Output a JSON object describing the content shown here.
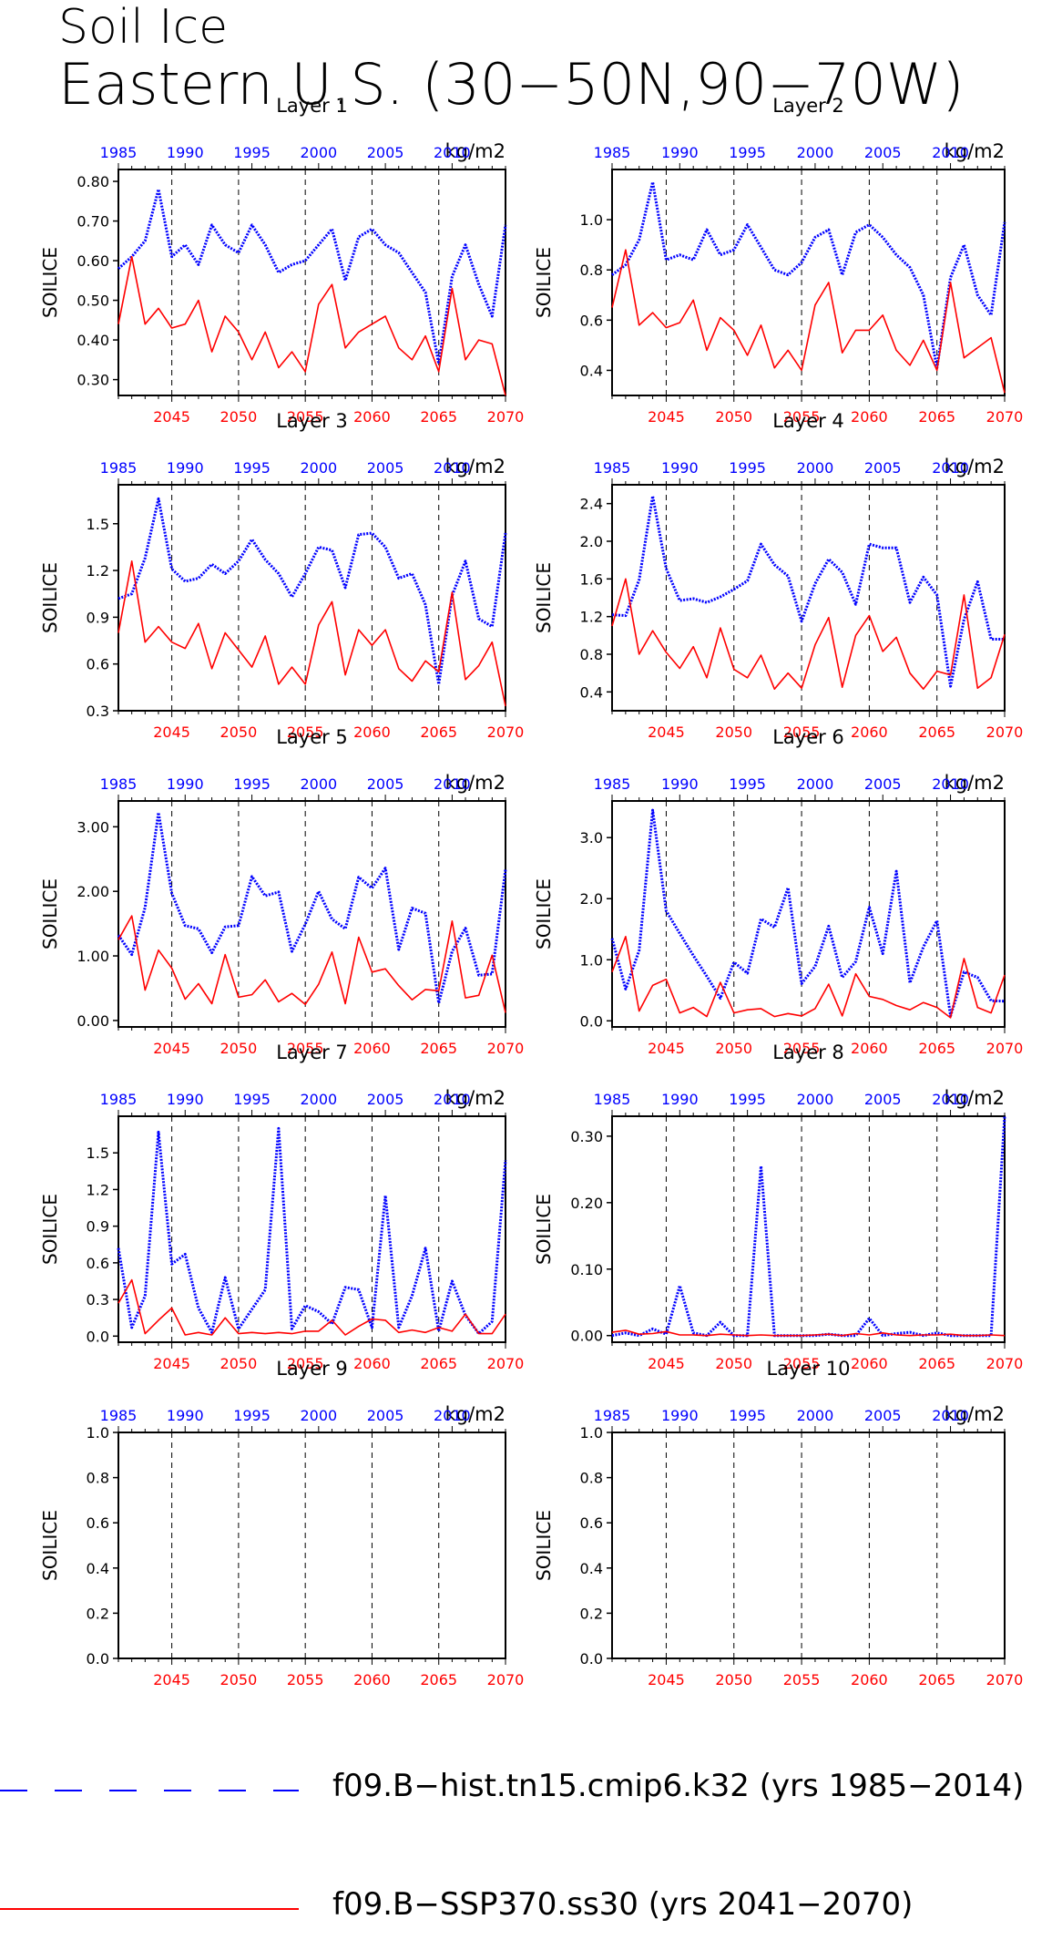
{
  "title": {
    "line1": "Soil Ice",
    "line2": "Eastern U.S. (30−50N,90−70W)"
  },
  "colors": {
    "hist": "#0000ff",
    "ssp": "#ff0000",
    "axis": "#000000"
  },
  "legend": [
    {
      "label": "f09.B−hist.tn15.cmip6.k32 (yrs 1985−2014)",
      "color": "#0000ff",
      "style": "dashed"
    },
    {
      "label": "f09.B−SSP370.ss30 (yrs 2041−2070)",
      "color": "#ff0000",
      "style": "solid"
    }
  ],
  "chart_data": [
    {
      "type": "line",
      "title": "Layer 1",
      "ylabel": "SOILICE",
      "units": "kg/m2",
      "yticks": [
        "0.30",
        "0.40",
        "0.50",
        "0.60",
        "0.70",
        "0.80"
      ],
      "ylim": [
        0.26,
        0.83
      ],
      "top_axis": {
        "ticks": [
          1985,
          1990,
          1995,
          2000,
          2005,
          2010
        ],
        "range": [
          1985,
          2014
        ]
      },
      "bottom_axis": {
        "ticks": [
          2045,
          2050,
          2055,
          2060,
          2065,
          2070
        ],
        "range": [
          2041,
          2070
        ]
      },
      "vlines_bottom_years": [
        2045,
        2050,
        2055,
        2060,
        2065
      ],
      "series": [
        {
          "key": "hist",
          "x_start": 1985,
          "values": [
            0.58,
            0.61,
            0.65,
            0.78,
            0.61,
            0.64,
            0.59,
            0.69,
            0.64,
            0.62,
            0.69,
            0.64,
            0.57,
            0.59,
            0.6,
            0.64,
            0.68,
            0.55,
            0.66,
            0.68,
            0.64,
            0.62,
            0.57,
            0.52,
            0.34,
            0.56,
            0.64,
            0.54,
            0.46,
            0.69
          ]
        },
        {
          "key": "ssp",
          "x_start": 2041,
          "values": [
            0.44,
            0.61,
            0.44,
            0.48,
            0.43,
            0.44,
            0.5,
            0.37,
            0.46,
            0.42,
            0.35,
            0.42,
            0.33,
            0.37,
            0.32,
            0.49,
            0.54,
            0.38,
            0.42,
            0.44,
            0.46,
            0.38,
            0.35,
            0.41,
            0.32,
            0.53,
            0.35,
            0.4,
            0.39,
            0.26
          ]
        }
      ]
    },
    {
      "type": "line",
      "title": "Layer 2",
      "ylabel": "SOILICE",
      "units": "kg/m2",
      "yticks": [
        "0.4",
        "0.6",
        "0.8",
        "1.0"
      ],
      "ylim": [
        0.3,
        1.2
      ],
      "top_axis": {
        "ticks": [
          1985,
          1990,
          1995,
          2000,
          2005,
          2010
        ],
        "range": [
          1985,
          2014
        ]
      },
      "bottom_axis": {
        "ticks": [
          2045,
          2050,
          2055,
          2060,
          2065,
          2070
        ],
        "range": [
          2041,
          2070
        ]
      },
      "vlines_bottom_years": [
        2045,
        2050,
        2055,
        2060,
        2065
      ],
      "series": [
        {
          "key": "hist",
          "x_start": 1985,
          "values": [
            0.78,
            0.82,
            0.92,
            1.15,
            0.84,
            0.86,
            0.84,
            0.96,
            0.86,
            0.88,
            0.98,
            0.89,
            0.8,
            0.78,
            0.83,
            0.93,
            0.96,
            0.78,
            0.95,
            0.98,
            0.93,
            0.86,
            0.81,
            0.7,
            0.41,
            0.77,
            0.9,
            0.7,
            0.62,
            0.99
          ]
        },
        {
          "key": "ssp",
          "x_start": 2041,
          "values": [
            0.65,
            0.88,
            0.58,
            0.63,
            0.57,
            0.59,
            0.68,
            0.48,
            0.61,
            0.56,
            0.46,
            0.58,
            0.41,
            0.48,
            0.4,
            0.66,
            0.75,
            0.47,
            0.56,
            0.56,
            0.62,
            0.48,
            0.42,
            0.52,
            0.4,
            0.75,
            0.45,
            0.49,
            0.53,
            0.31
          ]
        }
      ]
    },
    {
      "type": "line",
      "title": "Layer 3",
      "ylabel": "SOILICE",
      "units": "kg/m2",
      "yticks": [
        "0.3",
        "0.6",
        "0.9",
        "1.2",
        "1.5"
      ],
      "ylim": [
        0.3,
        1.75
      ],
      "top_axis": {
        "ticks": [
          1985,
          1990,
          1995,
          2000,
          2005,
          2010
        ],
        "range": [
          1985,
          2014
        ]
      },
      "bottom_axis": {
        "ticks": [
          2045,
          2050,
          2055,
          2060,
          2065,
          2070
        ],
        "range": [
          2041,
          2070
        ]
      },
      "vlines_bottom_years": [
        2045,
        2050,
        2055,
        2060,
        2065
      ],
      "series": [
        {
          "key": "hist",
          "x_start": 1985,
          "values": [
            1.02,
            1.05,
            1.28,
            1.66,
            1.21,
            1.13,
            1.15,
            1.24,
            1.18,
            1.26,
            1.4,
            1.27,
            1.18,
            1.03,
            1.18,
            1.35,
            1.33,
            1.09,
            1.43,
            1.44,
            1.35,
            1.15,
            1.18,
            0.98,
            0.47,
            1.04,
            1.26,
            0.89,
            0.84,
            1.44
          ]
        },
        {
          "key": "ssp",
          "x_start": 2041,
          "values": [
            0.8,
            1.26,
            0.74,
            0.84,
            0.74,
            0.7,
            0.86,
            0.57,
            0.8,
            0.69,
            0.58,
            0.78,
            0.47,
            0.58,
            0.47,
            0.85,
            1.0,
            0.53,
            0.82,
            0.72,
            0.82,
            0.57,
            0.49,
            0.62,
            0.55,
            1.06,
            0.5,
            0.59,
            0.74,
            0.33
          ]
        }
      ]
    },
    {
      "type": "line",
      "title": "Layer 4",
      "ylabel": "SOILICE",
      "units": "kg/m2",
      "yticks": [
        "0.4",
        "0.8",
        "1.2",
        "1.6",
        "2.0",
        "2.4"
      ],
      "ylim": [
        0.2,
        2.6
      ],
      "top_axis": {
        "ticks": [
          1985,
          1990,
          1995,
          2000,
          2005,
          2010
        ],
        "range": [
          1985,
          2014
        ]
      },
      "bottom_axis": {
        "ticks": [
          2045,
          2050,
          2055,
          2060,
          2065,
          2070
        ],
        "range": [
          2041,
          2070
        ]
      },
      "vlines_bottom_years": [
        2045,
        2050,
        2055,
        2060,
        2065
      ],
      "series": [
        {
          "key": "hist",
          "x_start": 1985,
          "values": [
            1.22,
            1.21,
            1.59,
            2.48,
            1.71,
            1.37,
            1.39,
            1.35,
            1.41,
            1.49,
            1.58,
            1.97,
            1.75,
            1.63,
            1.15,
            1.55,
            1.81,
            1.67,
            1.33,
            1.97,
            1.93,
            1.93,
            1.35,
            1.62,
            1.43,
            0.46,
            1.17,
            1.57,
            0.96,
            0.96
          ]
        },
        {
          "key": "ssp",
          "x_start": 2041,
          "values": [
            1.1,
            1.6,
            0.8,
            1.05,
            0.82,
            0.65,
            0.88,
            0.55,
            1.08,
            0.64,
            0.55,
            0.79,
            0.43,
            0.6,
            0.44,
            0.9,
            1.19,
            0.45,
            1.0,
            1.21,
            0.83,
            0.98,
            0.6,
            0.43,
            0.62,
            0.58,
            1.43,
            0.44,
            0.55,
            1.01
          ]
        }
      ]
    },
    {
      "type": "line",
      "title": "Layer 5",
      "ylabel": "SOILICE",
      "units": "kg/m2",
      "yticks": [
        "0.00",
        "1.00",
        "2.00",
        "3.00"
      ],
      "ylim": [
        -0.1,
        3.4
      ],
      "top_axis": {
        "ticks": [
          1985,
          1990,
          1995,
          2000,
          2005,
          2010
        ],
        "range": [
          1985,
          2014
        ]
      },
      "bottom_axis": {
        "ticks": [
          2045,
          2050,
          2055,
          2060,
          2065,
          2070
        ],
        "range": [
          2041,
          2070
        ]
      },
      "vlines_bottom_years": [
        2045,
        2050,
        2055,
        2060,
        2065
      ],
      "series": [
        {
          "key": "hist",
          "x_start": 1985,
          "values": [
            1.32,
            1.02,
            1.75,
            3.22,
            1.97,
            1.47,
            1.42,
            1.05,
            1.45,
            1.47,
            2.23,
            1.93,
            1.99,
            1.07,
            1.49,
            2.0,
            1.57,
            1.42,
            2.22,
            2.05,
            2.36,
            1.1,
            1.74,
            1.66,
            0.27,
            1.07,
            1.43,
            0.7,
            0.72,
            2.34
          ]
        },
        {
          "key": "ssp",
          "x_start": 2041,
          "values": [
            1.25,
            1.62,
            0.47,
            1.09,
            0.81,
            0.33,
            0.57,
            0.26,
            1.02,
            0.36,
            0.4,
            0.63,
            0.29,
            0.42,
            0.25,
            0.56,
            1.06,
            0.26,
            1.29,
            0.75,
            0.8,
            0.54,
            0.32,
            0.48,
            0.46,
            1.54,
            0.35,
            0.39,
            1.01,
            0.12
          ]
        }
      ]
    },
    {
      "type": "line",
      "title": "Layer 6",
      "ylabel": "SOILICE",
      "units": "kg/m2",
      "yticks": [
        "0.0",
        "1.0",
        "2.0",
        "3.0"
      ],
      "ylim": [
        -0.1,
        3.6
      ],
      "top_axis": {
        "ticks": [
          1985,
          1990,
          1995,
          2000,
          2005,
          2010
        ],
        "range": [
          1985,
          2014
        ]
      },
      "bottom_axis": {
        "ticks": [
          2045,
          2050,
          2055,
          2060,
          2065,
          2070
        ],
        "range": [
          2041,
          2070
        ]
      },
      "vlines_bottom_years": [
        2045,
        2050,
        2055,
        2060,
        2065
      ],
      "series": [
        {
          "key": "hist",
          "x_start": 1985,
          "values": [
            1.35,
            0.52,
            1.15,
            3.45,
            1.8,
            1.43,
            1.07,
            0.73,
            0.37,
            0.96,
            0.78,
            1.67,
            1.53,
            2.18,
            0.61,
            0.89,
            1.55,
            0.71,
            0.97,
            1.86,
            1.1,
            2.45,
            0.62,
            1.21,
            1.64,
            0.08,
            0.8,
            0.71,
            0.33,
            0.32
          ]
        },
        {
          "key": "ssp",
          "x_start": 2041,
          "values": [
            0.8,
            1.38,
            0.16,
            0.58,
            0.68,
            0.13,
            0.22,
            0.07,
            0.63,
            0.13,
            0.18,
            0.2,
            0.07,
            0.12,
            0.08,
            0.2,
            0.6,
            0.08,
            0.77,
            0.4,
            0.35,
            0.25,
            0.18,
            0.3,
            0.22,
            0.05,
            1.02,
            0.22,
            0.13,
            0.75
          ]
        }
      ]
    },
    {
      "type": "line",
      "title": "Layer 7",
      "ylabel": "SOILICE",
      "units": "kg/m2",
      "yticks": [
        "0.0",
        "0.3",
        "0.6",
        "0.9",
        "1.2",
        "1.5"
      ],
      "ylim": [
        -0.05,
        1.8
      ],
      "top_axis": {
        "ticks": [
          1985,
          1990,
          1995,
          2000,
          2005,
          2010
        ],
        "range": [
          1985,
          2014
        ]
      },
      "bottom_axis": {
        "ticks": [
          2045,
          2050,
          2055,
          2060,
          2065,
          2070
        ],
        "range": [
          2041,
          2070
        ]
      },
      "vlines_bottom_years": [
        2045,
        2050,
        2055,
        2060,
        2065
      ],
      "series": [
        {
          "key": "hist",
          "x_start": 1985,
          "values": [
            0.72,
            0.07,
            0.33,
            1.67,
            0.59,
            0.67,
            0.23,
            0.03,
            0.48,
            0.06,
            0.22,
            0.38,
            1.7,
            0.06,
            0.25,
            0.2,
            0.1,
            0.4,
            0.38,
            0.07,
            1.15,
            0.07,
            0.33,
            0.72,
            0.04,
            0.45,
            0.17,
            0.02,
            0.12,
            1.44
          ]
        },
        {
          "key": "ssp",
          "x_start": 2041,
          "values": [
            0.27,
            0.46,
            0.02,
            0.13,
            0.23,
            0.01,
            0.03,
            0.01,
            0.15,
            0.02,
            0.03,
            0.02,
            0.03,
            0.02,
            0.04,
            0.04,
            0.13,
            0.01,
            0.08,
            0.14,
            0.13,
            0.03,
            0.05,
            0.03,
            0.07,
            0.04,
            0.18,
            0.02,
            0.02,
            0.18
          ]
        }
      ]
    },
    {
      "type": "line",
      "title": "Layer 8",
      "ylabel": "SOILICE",
      "units": "kg/m2",
      "yticks": [
        "0.00",
        "0.10",
        "0.20",
        "0.30"
      ],
      "ylim": [
        -0.01,
        0.33
      ],
      "top_axis": {
        "ticks": [
          1985,
          1990,
          1995,
          2000,
          2005,
          2010
        ],
        "range": [
          1985,
          2014
        ]
      },
      "bottom_axis": {
        "ticks": [
          2045,
          2050,
          2055,
          2060,
          2065,
          2070
        ],
        "range": [
          2041,
          2070
        ]
      },
      "vlines_bottom_years": [
        2045,
        2050,
        2055,
        2060,
        2065
      ],
      "series": [
        {
          "key": "hist",
          "x_start": 1985,
          "values": [
            0.0,
            0.004,
            0.0,
            0.01,
            0.002,
            0.075,
            0.004,
            0.0,
            0.02,
            0.0,
            0.0,
            0.255,
            0.0,
            0.0,
            0.0,
            0.0,
            0.002,
            0.0,
            0.0,
            0.026,
            0.0,
            0.003,
            0.005,
            0.0,
            0.004,
            0.0,
            0.0,
            0.0,
            0.0,
            0.33
          ]
        },
        {
          "key": "ssp",
          "x_start": 2041,
          "values": [
            0.005,
            0.008,
            0.002,
            0.003,
            0.006,
            0.001,
            0.001,
            0.0,
            0.002,
            0.001,
            0.0,
            0.001,
            0.0,
            0.0,
            0.0,
            0.001,
            0.002,
            0.0,
            0.003,
            0.001,
            0.004,
            0.001,
            0.0,
            0.001,
            0.001,
            0.002,
            0.0,
            0.0,
            0.001,
            0.0
          ]
        }
      ]
    },
    {
      "type": "line",
      "title": "Layer 9",
      "ylabel": "SOILICE",
      "units": "kg/m2",
      "yticks": [
        "0.0",
        "0.2",
        "0.4",
        "0.6",
        "0.8",
        "1.0"
      ],
      "ylim": [
        0.0,
        1.0
      ],
      "top_axis": {
        "ticks": [
          1985,
          1990,
          1995,
          2000,
          2005,
          2010
        ],
        "range": [
          1985,
          2014
        ]
      },
      "bottom_axis": {
        "ticks": [
          2045,
          2050,
          2055,
          2060,
          2065,
          2070
        ],
        "range": [
          2041,
          2070
        ]
      },
      "vlines_bottom_years": [
        2045,
        2050,
        2055,
        2060,
        2065
      ],
      "series": []
    },
    {
      "type": "line",
      "title": "Layer 10",
      "ylabel": "SOILICE",
      "units": "kg/m2",
      "yticks": [
        "0.0",
        "0.2",
        "0.4",
        "0.6",
        "0.8",
        "1.0"
      ],
      "ylim": [
        0.0,
        1.0
      ],
      "top_axis": {
        "ticks": [
          1985,
          1990,
          1995,
          2000,
          2005,
          2010
        ],
        "range": [
          1985,
          2014
        ]
      },
      "bottom_axis": {
        "ticks": [
          2045,
          2050,
          2055,
          2060,
          2065,
          2070
        ],
        "range": [
          2041,
          2070
        ]
      },
      "vlines_bottom_years": [
        2045,
        2050,
        2055,
        2060,
        2065
      ],
      "series": []
    }
  ]
}
